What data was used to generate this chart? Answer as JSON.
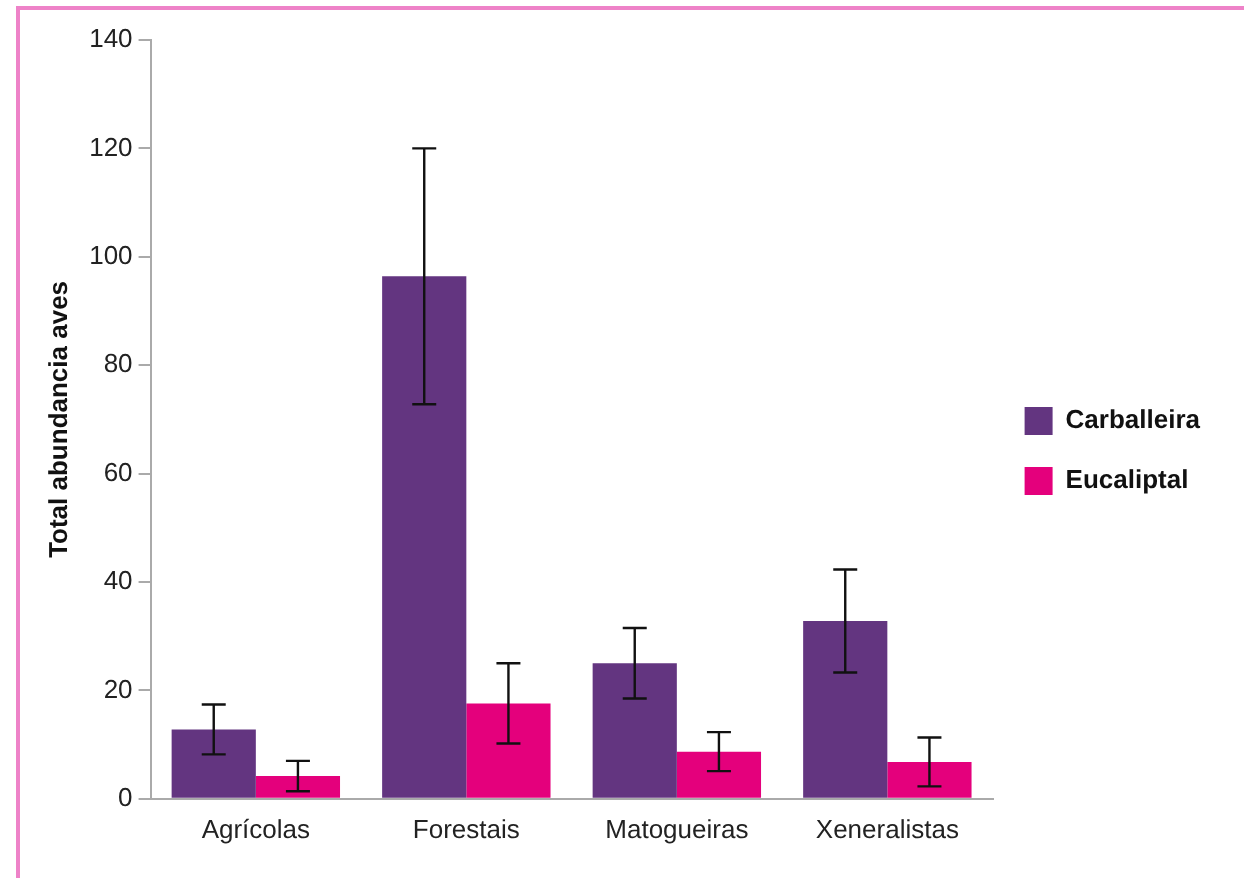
{
  "chart_data": {
    "type": "bar",
    "ylabel": "Total abundancia aves",
    "categories": [
      "Agrícolas",
      "Forestais",
      "Matogueiras",
      "Xeneralistas"
    ],
    "series": [
      {
        "name": "Carballeira",
        "color": "#633580",
        "values": [
          12.8,
          96.4,
          25,
          32.8
        ],
        "errors": [
          4.6,
          23.6,
          6.5,
          9.5
        ]
      },
      {
        "name": "Eucaliptal",
        "color": "#e4007c",
        "values": [
          4.2,
          17.6,
          8.7,
          6.8
        ],
        "errors": [
          2.8,
          7.4,
          3.6,
          4.5
        ]
      }
    ],
    "ylim": [
      0,
      140
    ],
    "yticks": [
      0,
      20,
      40,
      60,
      80,
      100,
      120,
      140
    ],
    "grid": false,
    "legend": "right"
  }
}
